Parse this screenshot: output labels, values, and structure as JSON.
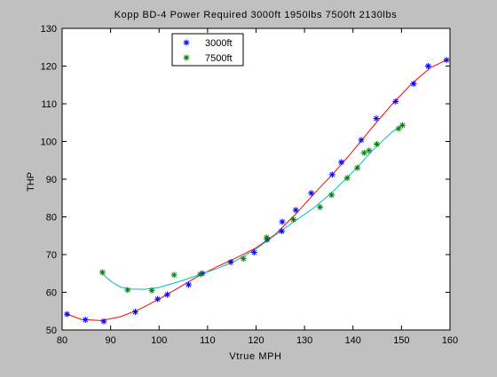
{
  "chart_data": {
    "type": "scatter",
    "title": "Kopp BD-4 Power Required 3000ft 1950lbs   7500ft 2130lbs",
    "xlabel": "Vtrue MPH",
    "ylabel": "THP",
    "xlim": [
      80,
      160
    ],
    "ylim": [
      50,
      130
    ],
    "xticks": [
      80,
      90,
      100,
      110,
      120,
      130,
      140,
      150,
      160
    ],
    "yticks": [
      50,
      60,
      70,
      80,
      90,
      100,
      110,
      120,
      130
    ],
    "grid": false,
    "legend_position": "top-left",
    "series": [
      {
        "name": "3000ft",
        "marker_color": "#0000ff",
        "curve_color": "#ff0000",
        "points": [
          {
            "x": 81,
            "y": 54.2
          },
          {
            "x": 84.8,
            "y": 52.7
          },
          {
            "x": 88.6,
            "y": 52.3
          },
          {
            "x": 95.1,
            "y": 54.8
          },
          {
            "x": 99.7,
            "y": 58.2
          },
          {
            "x": 101.7,
            "y": 59.4
          },
          {
            "x": 106.1,
            "y": 62
          },
          {
            "x": 108.9,
            "y": 65
          },
          {
            "x": 114.8,
            "y": 68
          },
          {
            "x": 119.6,
            "y": 70.6
          },
          {
            "x": 122.3,
            "y": 74
          },
          {
            "x": 125.3,
            "y": 76.2
          },
          {
            "x": 125.4,
            "y": 78.7
          },
          {
            "x": 128.2,
            "y": 81.8
          },
          {
            "x": 131.4,
            "y": 86.3
          },
          {
            "x": 135.7,
            "y": 91.2
          },
          {
            "x": 137.6,
            "y": 94.5
          },
          {
            "x": 141.7,
            "y": 100.4
          },
          {
            "x": 144.8,
            "y": 106.1
          },
          {
            "x": 148.8,
            "y": 110.6
          },
          {
            "x": 152.5,
            "y": 115.3
          },
          {
            "x": 155.5,
            "y": 120
          },
          {
            "x": 159.3,
            "y": 121.6
          }
        ],
        "fit": [
          {
            "x": 81,
            "y": 54.2
          },
          {
            "x": 84,
            "y": 52.8
          },
          {
            "x": 88,
            "y": 52.5
          },
          {
            "x": 92,
            "y": 53.5
          },
          {
            "x": 96,
            "y": 55.5
          },
          {
            "x": 100,
            "y": 58.2
          },
          {
            "x": 104,
            "y": 61.2
          },
          {
            "x": 108,
            "y": 64.2
          },
          {
            "x": 112,
            "y": 66.8
          },
          {
            "x": 116,
            "y": 69.2
          },
          {
            "x": 120,
            "y": 71.8
          },
          {
            "x": 124,
            "y": 75.4
          },
          {
            "x": 128,
            "y": 80.5
          },
          {
            "x": 132,
            "y": 86.2
          },
          {
            "x": 136,
            "y": 91.6
          },
          {
            "x": 140,
            "y": 97.5
          },
          {
            "x": 144,
            "y": 103.8
          },
          {
            "x": 148,
            "y": 109.8
          },
          {
            "x": 152,
            "y": 115.2
          },
          {
            "x": 156,
            "y": 119.6
          },
          {
            "x": 159.3,
            "y": 121.6
          }
        ]
      },
      {
        "name": "7500ft",
        "marker_color": "#008000",
        "curve_color": "#00c0c0",
        "points": [
          {
            "x": 88.3,
            "y": 65.3
          },
          {
            "x": 93.5,
            "y": 60.6
          },
          {
            "x": 98.5,
            "y": 60.5
          },
          {
            "x": 103.1,
            "y": 64.6
          },
          {
            "x": 108.5,
            "y": 64.8
          },
          {
            "x": 117.4,
            "y": 68.9
          },
          {
            "x": 122.2,
            "y": 74.5
          },
          {
            "x": 127.7,
            "y": 79.3
          },
          {
            "x": 133.2,
            "y": 82.6
          },
          {
            "x": 135.6,
            "y": 85.8
          },
          {
            "x": 138.8,
            "y": 90.3
          },
          {
            "x": 140.9,
            "y": 93
          },
          {
            "x": 142.3,
            "y": 97
          },
          {
            "x": 143.3,
            "y": 97.6
          },
          {
            "x": 144.9,
            "y": 99.3
          },
          {
            "x": 149.4,
            "y": 103.4
          },
          {
            "x": 150.2,
            "y": 104.3
          }
        ],
        "fit": [
          {
            "x": 88.3,
            "y": 64.9
          },
          {
            "x": 90,
            "y": 63
          },
          {
            "x": 92,
            "y": 61.4
          },
          {
            "x": 94,
            "y": 60.9
          },
          {
            "x": 97,
            "y": 60.8
          },
          {
            "x": 100,
            "y": 61.3
          },
          {
            "x": 104,
            "y": 62.8
          },
          {
            "x": 108,
            "y": 64.5
          },
          {
            "x": 112,
            "y": 66.3
          },
          {
            "x": 116,
            "y": 68.5
          },
          {
            "x": 120,
            "y": 71.5
          },
          {
            "x": 124,
            "y": 75.2
          },
          {
            "x": 128,
            "y": 78.9
          },
          {
            "x": 132,
            "y": 82.5
          },
          {
            "x": 136,
            "y": 86.9
          },
          {
            "x": 140,
            "y": 92
          },
          {
            "x": 144,
            "y": 97.6
          },
          {
            "x": 148,
            "y": 102.5
          },
          {
            "x": 150.2,
            "y": 104.3
          }
        ]
      }
    ]
  }
}
